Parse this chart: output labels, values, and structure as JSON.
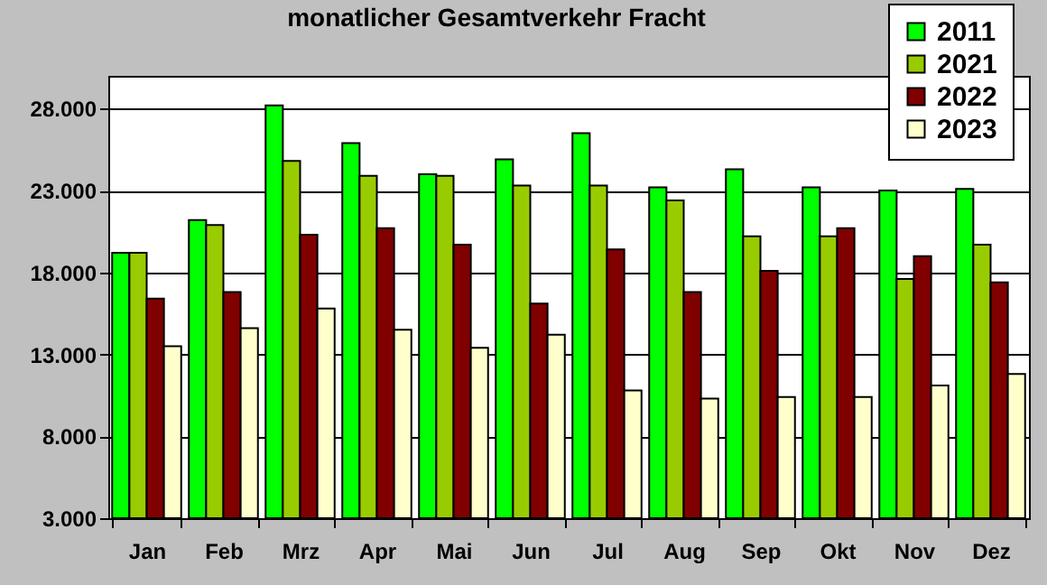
{
  "chart_data": {
    "type": "bar",
    "title": "monatlicher Gesamtverkehr  Fracht",
    "categories": [
      "Jan",
      "Feb",
      "Mrz",
      "Apr",
      "Mai",
      "Jun",
      "Jul",
      "Aug",
      "Sep",
      "Okt",
      "Nov",
      "Dez"
    ],
    "series": [
      {
        "name": "2011",
        "color": "#00ff00",
        "values": [
          19200,
          21200,
          28200,
          25900,
          24000,
          24900,
          26500,
          23200,
          24300,
          23200,
          23000,
          23100
        ]
      },
      {
        "name": "2021",
        "color": "#99cc00",
        "values": [
          19200,
          20900,
          24800,
          23900,
          23900,
          23300,
          23300,
          22400,
          20200,
          20200,
          17600,
          19700
        ]
      },
      {
        "name": "2022",
        "color": "#800000",
        "values": [
          16400,
          16800,
          20300,
          20700,
          19700,
          16100,
          19400,
          16800,
          18100,
          20700,
          19000,
          17400
        ]
      },
      {
        "name": "2023",
        "color": "#ffffcc",
        "values": [
          13500,
          14600,
          15800,
          14500,
          13400,
          14200,
          10800,
          10300,
          10400,
          10400,
          11100,
          11800
        ]
      }
    ],
    "ylim": [
      3000,
      30000
    ],
    "yticks": [
      {
        "value": 3000,
        "label": "3.000"
      },
      {
        "value": 8000,
        "label": "8.000"
      },
      {
        "value": 13000,
        "label": "13.000"
      },
      {
        "value": 18000,
        "label": "18.000"
      },
      {
        "value": 23000,
        "label": "23.000"
      },
      {
        "value": 28000,
        "label": "28.000"
      }
    ],
    "grid": "y",
    "legend": "top right"
  }
}
